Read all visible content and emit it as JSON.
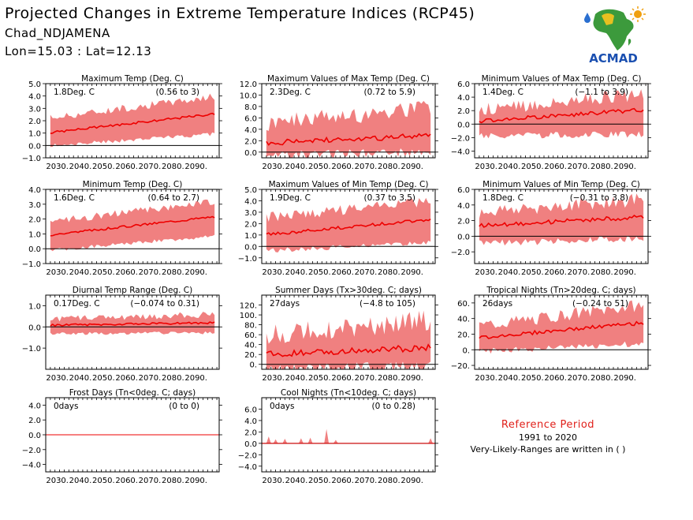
{
  "header": {
    "title": "Projected Changes in Extreme Temperature Indices (RCP45)",
    "station": "Chad_NDJAMENA",
    "coords": "Lon=15.03 : Lat=12.13"
  },
  "logo": {
    "icon": "acmad-africa-map-logo",
    "text": "ACMAD"
  },
  "reference": {
    "title": "Reference Period",
    "years": "1991 to 2020",
    "note": "Very-Likely-Ranges are written in ( )"
  },
  "colors": {
    "band": "#f08080",
    "median": "#ee0000",
    "zero_line": "#000000",
    "ref_title": "#e0201a"
  },
  "chart_data": [
    {
      "type": "area",
      "title": "Maximum Temp (Deg. C)",
      "change_label": "1.8Deg. C",
      "range_label": "(0.56 to 3)",
      "x_start": 2025,
      "x_end": 2100,
      "x_tick_labels": [
        "2030.",
        "2040.",
        "2050.",
        "2060.",
        "2070.",
        "2080.",
        "2090."
      ],
      "ylim": [
        -1.0,
        5.0
      ],
      "y_ticks": [
        -1.0,
        0.0,
        1.0,
        2.0,
        3.0,
        4.0,
        5.0
      ],
      "y_tick_labels": [
        "−1.0",
        "0.0",
        "1.0",
        "2.0",
        "3.0",
        "4.0",
        "5.0"
      ],
      "median": {
        "start": 1.0,
        "end": 2.6
      },
      "band_low": {
        "start": 0.1,
        "end": 1.1
      },
      "band_high": {
        "start": 2.2,
        "end": 4.0
      },
      "noise": 0.3
    },
    {
      "type": "area",
      "title": "Maximum Values of Max Temp (Deg. C)",
      "change_label": "2.3Deg. C",
      "range_label": "(0.72 to 5.9)",
      "x_start": 2025,
      "x_end": 2100,
      "x_tick_labels": [
        "2030.",
        "2040.",
        "2050.",
        "2060.",
        "2070.",
        "2080.",
        "2090."
      ],
      "ylim": [
        -1.0,
        12.0
      ],
      "y_ticks": [
        0.0,
        2.0,
        4.0,
        6.0,
        8.0,
        10.0,
        12.0
      ],
      "y_tick_labels": [
        "0.0",
        "2.0",
        "4.0",
        "6.0",
        "8.0",
        "10.0",
        "12.0"
      ],
      "median": {
        "start": 1.6,
        "end": 2.9
      },
      "band_low": {
        "start": 0.2,
        "end": 0.8
      },
      "band_high": {
        "start": 5.0,
        "end": 8.0
      },
      "noise": 1.6
    },
    {
      "type": "area",
      "title": "Minimum Values of Max Temp (Deg. C)",
      "change_label": "1.4Deg. C",
      "range_label": "(−1.1 to 3.9)",
      "x_start": 2025,
      "x_end": 2100,
      "x_tick_labels": [
        "2030.",
        "2040.",
        "2050.",
        "2060.",
        "2070.",
        "2080.",
        "2090."
      ],
      "ylim": [
        -5.0,
        6.0
      ],
      "y_ticks": [
        -4.0,
        -2.0,
        0.0,
        2.0,
        4.0,
        6.0
      ],
      "y_tick_labels": [
        "−4.0",
        "−2.0",
        "0.0",
        "2.0",
        "4.0",
        "6.0"
      ],
      "median": {
        "start": 0.4,
        "end": 2.2
      },
      "band_low": {
        "start": -1.2,
        "end": -1.0
      },
      "band_high": {
        "start": 2.0,
        "end": 4.5
      },
      "noise": 1.0
    },
    {
      "type": "area",
      "title": "Minimum Temp (Deg. C)",
      "change_label": "1.6Deg. C",
      "range_label": "(0.64 to 2.7)",
      "x_start": 2025,
      "x_end": 2100,
      "x_tick_labels": [
        "2030.",
        "2040.",
        "2050.",
        "2060.",
        "2070.",
        "2080.",
        "2090."
      ],
      "ylim": [
        -1.0,
        4.0
      ],
      "y_ticks": [
        -1.0,
        0.0,
        1.0,
        2.0,
        3.0,
        4.0
      ],
      "y_tick_labels": [
        "−1.0",
        "0.0",
        "1.0",
        "2.0",
        "3.0",
        "4.0"
      ],
      "median": {
        "start": 0.9,
        "end": 2.2
      },
      "band_low": {
        "start": 0.0,
        "end": 1.0
      },
      "band_high": {
        "start": 1.8,
        "end": 3.2
      },
      "noise": 0.25
    },
    {
      "type": "area",
      "title": "Maximum Values of Min Temp (Deg. C)",
      "change_label": "1.9Deg. C",
      "range_label": "(0.37 to 3.5)",
      "x_start": 2025,
      "x_end": 2100,
      "x_tick_labels": [
        "2030.",
        "2040.",
        "2050.",
        "2060.",
        "2070.",
        "2080.",
        "2090."
      ],
      "ylim": [
        -1.5,
        5.0
      ],
      "y_ticks": [
        -1.0,
        0.0,
        1.0,
        2.0,
        3.0,
        4.0,
        5.0
      ],
      "y_tick_labels": [
        "−1.0",
        "0.0",
        "1.0",
        "2.0",
        "3.0",
        "4.0",
        "5.0"
      ],
      "median": {
        "start": 1.0,
        "end": 2.4
      },
      "band_low": {
        "start": -0.2,
        "end": 0.6
      },
      "band_high": {
        "start": 2.5,
        "end": 4.0
      },
      "noise": 0.45
    },
    {
      "type": "area",
      "title": "Minimum Values of Min Temp (Deg. C)",
      "change_label": "1.8Deg. C",
      "range_label": "(−0.31 to 3.8)",
      "x_start": 2025,
      "x_end": 2100,
      "x_tick_labels": [
        "2030.",
        "2040.",
        "2050.",
        "2060.",
        "2070.",
        "2080.",
        "2090."
      ],
      "ylim": [
        -3.5,
        6.0
      ],
      "y_ticks": [
        -2.0,
        0.0,
        2.0,
        4.0,
        6.0
      ],
      "y_tick_labels": [
        "−2.0",
        "0.0",
        "2.0",
        "4.0",
        "6.0"
      ],
      "median": {
        "start": 1.3,
        "end": 2.5
      },
      "band_low": {
        "start": -0.5,
        "end": 0.2
      },
      "band_high": {
        "start": 3.0,
        "end": 4.8
      },
      "noise": 0.9
    },
    {
      "type": "area",
      "title": "Diurnal Temp Range (Deg. C)",
      "change_label": "0.17Deg. C",
      "range_label": "(−0.074 to 0.31)",
      "x_start": 2025,
      "x_end": 2100,
      "x_tick_labels": [
        "2030.",
        "2040.",
        "2050.",
        "2060.",
        "2070.",
        "2080.",
        "2090."
      ],
      "ylim": [
        -2.0,
        1.5
      ],
      "y_ticks": [
        -1.0,
        0.0,
        1.0
      ],
      "y_tick_labels": [
        "−1.0",
        "0.0",
        "1.0"
      ],
      "median": {
        "start": 0.08,
        "end": 0.2
      },
      "band_low": {
        "start": -0.25,
        "end": -0.2
      },
      "band_high": {
        "start": 0.35,
        "end": 0.6
      },
      "noise": 0.15
    },
    {
      "type": "area",
      "title": "Summer Days (Tx>30deg. C; days)",
      "change_label": "27days",
      "range_label": "(−4.8 to 105)",
      "x_start": 2025,
      "x_end": 2100,
      "x_tick_labels": [
        "2030.",
        "2040.",
        "2050.",
        "2060.",
        "2070.",
        "2080.",
        "2090."
      ],
      "ylim": [
        -10,
        140
      ],
      "y_ticks": [
        0,
        20,
        40,
        60,
        80,
        100,
        120
      ],
      "y_tick_labels": [
        "0.",
        "20.",
        "40.",
        "60.",
        "80.",
        "100.",
        "120."
      ],
      "median": {
        "start": 20,
        "end": 34
      },
      "band_low": {
        "start": 0,
        "end": 8
      },
      "band_high": {
        "start": 60,
        "end": 90
      },
      "noise": 22
    },
    {
      "type": "area",
      "title": "Tropical Nights (Tn>20deg. C; days)",
      "change_label": "26days",
      "range_label": "(−0.24 to 51)",
      "x_start": 2025,
      "x_end": 2100,
      "x_tick_labels": [
        "2030.",
        "2040.",
        "2050.",
        "2060.",
        "2070.",
        "2080.",
        "2090."
      ],
      "ylim": [
        -25,
        70
      ],
      "y_ticks": [
        -20,
        0,
        20,
        40,
        60
      ],
      "y_tick_labels": [
        "−20.",
        "0.",
        "20.",
        "40.",
        "60."
      ],
      "median": {
        "start": 15,
        "end": 35
      },
      "band_low": {
        "start": 2,
        "end": 12
      },
      "band_high": {
        "start": 30,
        "end": 58
      },
      "noise": 8
    },
    {
      "type": "area",
      "title": "Frost Days (Tn<0deg. C; days)",
      "change_label": "0days",
      "range_label": "(0 to 0)",
      "x_start": 2025,
      "x_end": 2100,
      "x_tick_labels": [
        "2030.",
        "2040.",
        "2050.",
        "2060.",
        "2070.",
        "2080.",
        "2090."
      ],
      "ylim": [
        -5.0,
        5.0
      ],
      "y_ticks": [
        -4.0,
        -2.0,
        0.0,
        2.0,
        4.0
      ],
      "y_tick_labels": [
        "−4.0",
        "−2.0",
        "0.0",
        "2.0",
        "4.0"
      ],
      "median": {
        "start": 0,
        "end": 0
      },
      "band_low": {
        "start": 0,
        "end": 0
      },
      "band_high": {
        "start": 0,
        "end": 0
      },
      "noise": 0
    },
    {
      "type": "area",
      "title": "Cool Nights (Tn<10deg. C; days)",
      "change_label": "0days",
      "range_label": "(0 to 0.28)",
      "x_start": 2025,
      "x_end": 2100,
      "x_tick_labels": [
        "2030.",
        "2040.",
        "2050.",
        "2060.",
        "2070.",
        "2080.",
        "2090."
      ],
      "ylim": [
        -5.0,
        8.0
      ],
      "y_ticks": [
        -4.0,
        -2.0,
        0.0,
        2.0,
        4.0,
        6.0
      ],
      "y_tick_labels": [
        "−4.0",
        "−2.0",
        "0.0",
        "2.0",
        "4.0",
        "6.0"
      ],
      "median": {
        "start": 0,
        "end": 0
      },
      "band_low": {
        "start": 0,
        "end": 0
      },
      "band_high": {
        "start": 0.1,
        "end": 0.1
      },
      "noise": 0,
      "spikes": [
        [
          2028,
          1.2
        ],
        [
          2031,
          0.7
        ],
        [
          2035,
          0.8
        ],
        [
          2042,
          0.9
        ],
        [
          2046,
          1.0
        ],
        [
          2053,
          2.5
        ],
        [
          2057,
          0.6
        ],
        [
          2098,
          0.9
        ]
      ]
    }
  ]
}
